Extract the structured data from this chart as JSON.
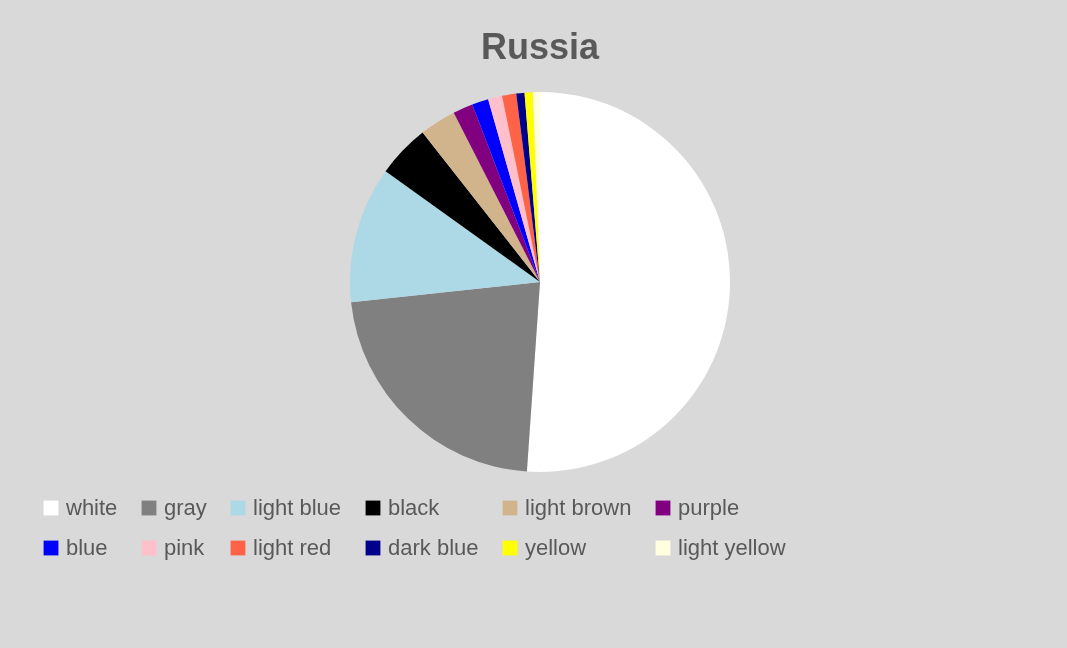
{
  "chart_data": {
    "type": "pie",
    "title": "Russia",
    "categories": [
      "white",
      "gray",
      "light blue",
      "black",
      "light brown",
      "purple",
      "blue",
      "pink",
      "light red",
      "dark blue",
      "yellow",
      "light yellow"
    ],
    "values": [
      51.1,
      22.2,
      11.6,
      4.5,
      3.1,
      1.7,
      1.4,
      1.2,
      1.2,
      0.7,
      0.7,
      0.6
    ],
    "colors": [
      "#ffffff",
      "#808080",
      "#add8e6",
      "#000000",
      "#d2b48c",
      "#800080",
      "#0000ff",
      "#ffc0cb",
      "#ff6347",
      "#00008b",
      "#ffff00",
      "#ffffe0"
    ],
    "legend": "bottom"
  }
}
